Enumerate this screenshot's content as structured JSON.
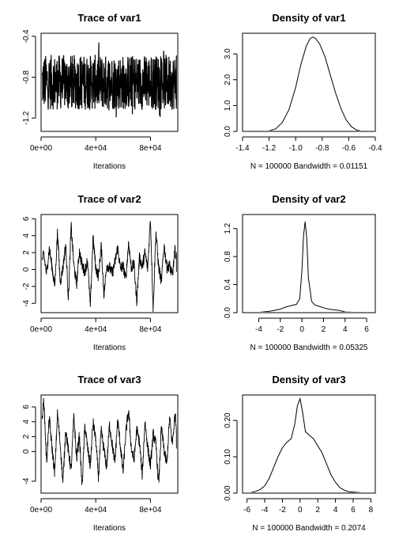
{
  "chart_data": [
    {
      "type": "line",
      "title": "Trace of var1",
      "xlabel": "Iterations",
      "ylabel": "",
      "xlim": [
        0,
        100000
      ],
      "ylim": [
        -1.33,
        -0.37
      ],
      "x_ticks": [
        0,
        40000,
        80000
      ],
      "x_tick_labels": [
        "0e+00",
        "4e+04",
        "8e+04"
      ],
      "y_ticks": [
        -1.2,
        -0.8,
        -0.4
      ],
      "y_tick_labels": [
        "-1.2",
        "-0.8",
        "-0.4"
      ],
      "series": [
        {
          "x": [
            0,
            2500,
            5000,
            7500,
            10000,
            12500,
            15000,
            17500,
            20000,
            22500,
            25000,
            27500,
            30000,
            32500,
            35000,
            37500,
            40000,
            42500,
            45000,
            47500,
            50000,
            52500,
            55000,
            57500,
            60000,
            62500,
            65000,
            67500,
            70000,
            72500,
            75000,
            77500,
            80000,
            82500,
            85000,
            87500,
            90000,
            92500,
            95000,
            97500,
            100000
          ],
          "y": [
            -0.86,
            -0.84,
            -0.87,
            -0.85,
            -0.86,
            -0.88,
            -0.85,
            -0.86,
            -0.84,
            -0.87,
            -0.86,
            -0.85,
            -0.86,
            -0.87,
            -0.85,
            -0.86,
            -0.86,
            -0.84,
            -0.87,
            -0.86,
            -0.85,
            -0.86,
            -0.87,
            -0.85,
            -0.86,
            -0.86,
            -0.84,
            -0.87,
            -0.86,
            -0.85,
            -0.86,
            -0.88,
            -0.85,
            -0.86,
            -0.84,
            -0.87,
            -0.86,
            -0.85,
            -0.86,
            -0.87,
            -0.86
          ]
        }
      ],
      "band_range": [
        -1.12,
        -0.58
      ],
      "grid": false
    },
    {
      "type": "line",
      "title": "Density of var1",
      "xlabel": "N = 100000   Bandwidth = 0.01151",
      "ylabel": "",
      "xlim": [
        -1.4,
        -0.4
      ],
      "ylim": [
        0,
        3.8
      ],
      "x_ticks": [
        -1.4,
        -1.2,
        -1.0,
        -0.8,
        -0.6,
        -0.4
      ],
      "x_tick_labels": [
        "-1.4",
        "-1.2",
        "-1.0",
        "-0.8",
        "-0.6",
        "-0.4"
      ],
      "y_ticks": [
        0.0,
        1.0,
        2.0,
        3.0
      ],
      "y_tick_labels": [
        "0.0",
        "1.0",
        "2.0",
        "3.0"
      ],
      "series": [
        {
          "x": [
            -1.32,
            -1.25,
            -1.2,
            -1.15,
            -1.1,
            -1.05,
            -1.0,
            -0.96,
            -0.92,
            -0.89,
            -0.87,
            -0.85,
            -0.82,
            -0.78,
            -0.74,
            -0.7,
            -0.66,
            -0.62,
            -0.58,
            -0.54,
            -0.5,
            -0.45
          ],
          "y": [
            0.0,
            0.0,
            0.02,
            0.1,
            0.35,
            0.85,
            1.7,
            2.6,
            3.3,
            3.6,
            3.65,
            3.6,
            3.4,
            2.9,
            2.2,
            1.5,
            0.9,
            0.45,
            0.18,
            0.05,
            0.01,
            0.0
          ]
        }
      ],
      "rug_range": [
        -1.35,
        -0.44
      ],
      "grid": false
    },
    {
      "type": "line",
      "title": "Trace of var2",
      "xlabel": "Iterations",
      "ylabel": "",
      "xlim": [
        0,
        100000
      ],
      "ylim": [
        -5.1,
        6.5
      ],
      "x_ticks": [
        0,
        40000,
        80000
      ],
      "x_tick_labels": [
        "0e+00",
        "4e+04",
        "8e+04"
      ],
      "y_ticks": [
        -4,
        -2,
        0,
        2,
        4,
        6
      ],
      "y_tick_labels": [
        "-4",
        "-2",
        "0",
        "2",
        "4",
        "6"
      ],
      "series": [
        {
          "x": [
            0,
            2000,
            4000,
            6000,
            8000,
            10000,
            12000,
            14000,
            16000,
            18000,
            20000,
            22000,
            24000,
            26000,
            28000,
            30000,
            32000,
            34000,
            36000,
            38000,
            40000,
            42000,
            44000,
            46000,
            48000,
            50000,
            52000,
            54000,
            56000,
            58000,
            60000,
            62000,
            64000,
            66000,
            68000,
            70000,
            72000,
            74000,
            76000,
            78000,
            80000,
            82000,
            84000,
            86000,
            88000,
            90000,
            92000,
            94000,
            96000,
            98000,
            100000
          ],
          "y": [
            0.5,
            1.8,
            -0.5,
            2.5,
            0.3,
            -2.0,
            4.5,
            -1.5,
            0.2,
            3.0,
            -3.5,
            5.2,
            0.4,
            -1.8,
            2.2,
            0.5,
            -0.3,
            1.2,
            -4.5,
            3.8,
            0.2,
            -0.8,
            2.8,
            -3.0,
            0.5,
            0.3,
            -0.5,
            0.8,
            2.6,
            0.1,
            0.4,
            -1.2,
            3.2,
            0.2,
            0.6,
            -3.8,
            1.5,
            0.3,
            2.0,
            0.1,
            6.2,
            -4.8,
            4.5,
            0.3,
            -1.5,
            2.9,
            0.2,
            0.5,
            -0.8,
            2.3,
            0.4
          ],
          "line_range_per_point": "high-variance MCMC trace"
        }
      ],
      "grid": false
    },
    {
      "type": "line",
      "title": "Density of var2",
      "xlabel": "N = 100000   Bandwidth = 0.05325",
      "ylabel": "",
      "xlim": [
        -5.5,
        6.8
      ],
      "ylim": [
        0,
        1.4
      ],
      "x_ticks": [
        -4,
        -2,
        0,
        2,
        4,
        6
      ],
      "x_tick_labels": [
        "-4",
        "-2",
        "0",
        "2",
        "4",
        "6"
      ],
      "y_ticks": [
        0.0,
        0.4,
        0.8,
        1.2
      ],
      "y_tick_labels": [
        "0.0",
        "0.4",
        "0.8",
        "1.2"
      ],
      "series": [
        {
          "x": [
            -5,
            -4,
            -3,
            -2,
            -1.5,
            -1,
            -0.5,
            -0.2,
            0,
            0.15,
            0.3,
            0.45,
            0.6,
            0.9,
            1.2,
            1.6,
            2,
            2.5,
            3,
            3.5,
            4,
            5,
            6.5
          ],
          "y": [
            0.0,
            0.005,
            0.02,
            0.05,
            0.08,
            0.1,
            0.12,
            0.2,
            0.6,
            1.1,
            1.3,
            1.05,
            0.5,
            0.16,
            0.11,
            0.09,
            0.07,
            0.05,
            0.04,
            0.03,
            0.01,
            0.005,
            0.0
          ]
        }
      ],
      "rug_range": [
        -5.0,
        6.5
      ],
      "grid": false
    },
    {
      "type": "line",
      "title": "Trace of var3",
      "xlabel": "Iterations",
      "ylabel": "",
      "xlim": [
        0,
        100000
      ],
      "ylim": [
        -5.6,
        7.6
      ],
      "x_ticks": [
        0,
        40000,
        80000
      ],
      "x_tick_labels": [
        "0e+00",
        "4e+04",
        "8e+04"
      ],
      "y_ticks": [
        -4,
        0,
        2,
        4,
        6
      ],
      "y_tick_labels": [
        "-4",
        "0",
        "2",
        "4",
        "6"
      ],
      "series": [
        {
          "x": [
            0,
            2000,
            4000,
            6000,
            8000,
            10000,
            12000,
            14000,
            16000,
            18000,
            20000,
            22000,
            24000,
            26000,
            28000,
            30000,
            32000,
            34000,
            36000,
            38000,
            40000,
            42000,
            44000,
            46000,
            48000,
            50000,
            52000,
            54000,
            56000,
            58000,
            60000,
            62000,
            64000,
            66000,
            68000,
            70000,
            72000,
            74000,
            76000,
            78000,
            80000,
            82000,
            84000,
            86000,
            88000,
            90000,
            92000,
            94000,
            96000,
            98000,
            100000
          ],
          "y": [
            2.0,
            7.2,
            -1.5,
            4.5,
            0.5,
            -3.0,
            5.2,
            1.0,
            -4.2,
            3.0,
            0.0,
            -2.5,
            4.8,
            -1.0,
            2.2,
            -4.8,
            3.5,
            0.5,
            -2.0,
            4.0,
            1.5,
            -3.5,
            2.8,
            0.2,
            -2.2,
            3.6,
            1.0,
            -1.5,
            4.2,
            0.8,
            -2.8,
            2.5,
            5.5,
            0.4,
            -1.2,
            3.0,
            1.2,
            -3.2,
            4.0,
            0.6,
            -2.0,
            2.4,
            1.0,
            -4.5,
            3.2,
            0.2,
            -1.8,
            4.6,
            1.0,
            5.0,
            1.2
          ]
        }
      ],
      "grid": false
    },
    {
      "type": "line",
      "title": "Density of var3",
      "xlabel": "N = 100000   Bandwidth = 0.2074",
      "ylabel": "",
      "xlim": [
        -6.5,
        8.5
      ],
      "ylim": [
        0,
        0.27
      ],
      "x_ticks": [
        -6,
        -4,
        -2,
        0,
        2,
        4,
        6,
        8
      ],
      "x_tick_labels": [
        "-6",
        "-4",
        "-2",
        "0",
        "2",
        "4",
        "6",
        "8"
      ],
      "y_ticks": [
        0.0,
        0.1,
        0.2
      ],
      "y_tick_labels": [
        "0.00",
        "0.10",
        "0.20"
      ],
      "series": [
        {
          "x": [
            -5.5,
            -5,
            -4.5,
            -4,
            -3.5,
            -3,
            -2.5,
            -2,
            -1.5,
            -1,
            -0.6,
            -0.3,
            0,
            0.3,
            0.6,
            1,
            1.5,
            2,
            2.5,
            3,
            3.5,
            4,
            4.5,
            5,
            5.5,
            6,
            7
          ],
          "y": [
            0.002,
            0.005,
            0.01,
            0.02,
            0.04,
            0.07,
            0.1,
            0.125,
            0.14,
            0.15,
            0.19,
            0.24,
            0.26,
            0.22,
            0.17,
            0.16,
            0.15,
            0.13,
            0.11,
            0.08,
            0.05,
            0.03,
            0.015,
            0.008,
            0.004,
            0.003,
            0.001
          ]
        }
      ],
      "rug_range": [
        -5.5,
        7.2
      ],
      "grid": false
    }
  ]
}
